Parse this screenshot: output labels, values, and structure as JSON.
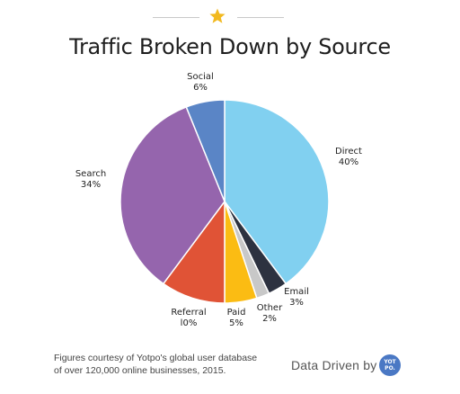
{
  "colors": {
    "accent_star": "#f2b91f",
    "brand_badge": "#4a78c4"
  },
  "header": {
    "star_icon": "star-icon"
  },
  "chart_data": {
    "type": "pie",
    "title": "Traffic Broken Down by Source",
    "slices": [
      {
        "label": "Direct",
        "pct_label": "40%",
        "value": 40,
        "color": "#81d0f0"
      },
      {
        "label": "Email",
        "pct_label": "3%",
        "value": 3,
        "color": "#2d3240"
      },
      {
        "label": "Other",
        "pct_label": "2%",
        "value": 2,
        "color": "#c8c8c8"
      },
      {
        "label": "Paid",
        "pct_label": "5%",
        "value": 5,
        "color": "#fbbc13"
      },
      {
        "label": "Referral",
        "pct_label": "l0%",
        "value": 10,
        "color": "#e05336"
      },
      {
        "label": "Search",
        "pct_label": "34%",
        "value": 34,
        "color": "#9565ad"
      },
      {
        "label": "Social",
        "pct_label": "6%",
        "value": 6,
        "color": "#5a85c6"
      }
    ],
    "start_angle": "12 o'clock",
    "direction": "clockwise"
  },
  "footer": {
    "note_line1": "Figures courtesy of Yotpo's global user database",
    "note_line2": "of over 120,000 online businesses, 2015.",
    "brand_text": "Data Driven by",
    "badge_line1": "YOT",
    "badge_line2": "PO."
  }
}
